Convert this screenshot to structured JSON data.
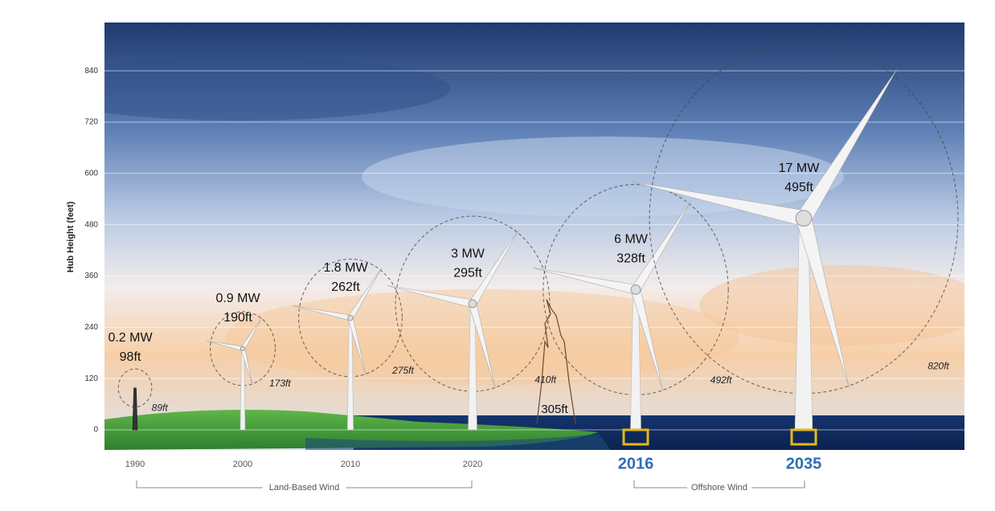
{
  "chart_data": {
    "type": "turbine",
    "y_label": "Hub Height (feet)",
    "ylim": [
      -47,
      953
    ],
    "yticks": [
      0,
      120,
      240,
      360,
      480,
      600,
      720,
      840
    ],
    "grid": true,
    "categories": [
      "1990",
      "2000",
      "2010",
      "2020",
      "2016",
      "2035"
    ],
    "capacity_labels": [
      "0.2 MW",
      "0.9 MW",
      "1.8 MW",
      "3 MW",
      "6 MW",
      "17 MW"
    ],
    "values": [
      98,
      190,
      262,
      295,
      328,
      495
    ],
    "value_labels": [
      "98ft",
      "190ft",
      "262ft",
      "295ft",
      "328ft",
      "495ft"
    ],
    "rotor_diameter": {
      "values": [
        89,
        173,
        275,
        410,
        492,
        820
      ],
      "value_labels": [
        "89ft",
        "173ft",
        "275ft",
        "410ft",
        "492ft",
        "820ft"
      ]
    },
    "landmark": {
      "value": 305,
      "label": "305ft"
    },
    "group_labels": [
      "Land-Based Wind",
      "Offshore Wind"
    ]
  }
}
